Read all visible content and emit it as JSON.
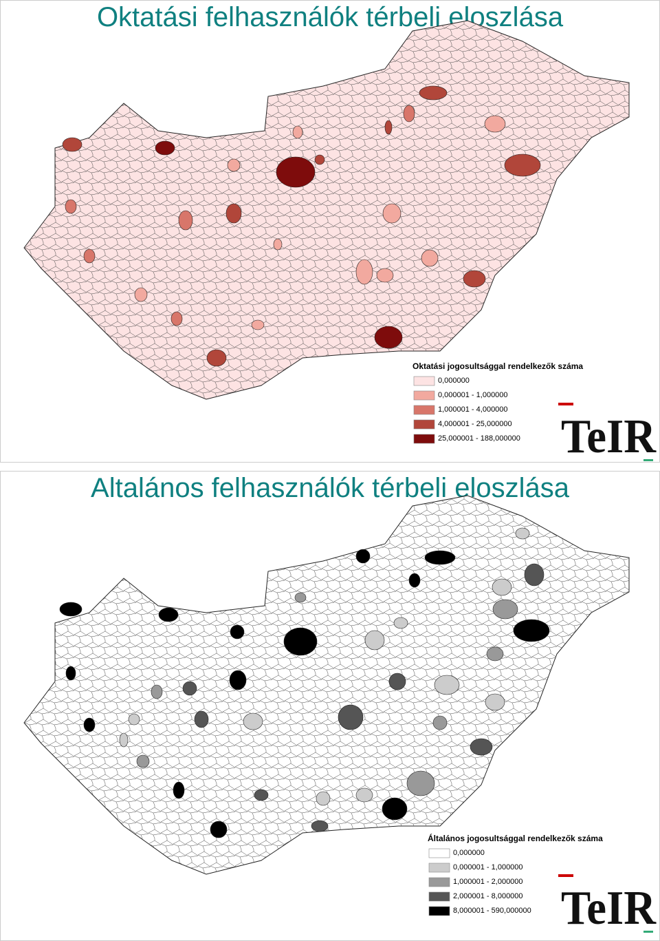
{
  "panels": [
    {
      "title": "Oktatási felhasználók térbeli eloszlása",
      "legend": {
        "title": "Oktatási jogosultsággal rendelkezők száma",
        "items": [
          "0,000000",
          "0,000001 - 1,000000",
          "1,000001 - 4,000000",
          "4,000001 - 25,000000",
          "25,000001 - 188,000000"
        ],
        "colors": [
          "#fde3e3",
          "#f2a99f",
          "#d8766a",
          "#b1463a",
          "#7e0c0c"
        ]
      },
      "logo": "TeIR"
    },
    {
      "title": "Altalános felhasználók térbeli eloszlása",
      "legend": {
        "title": "Általános jogosultsággal rendelkezők száma",
        "items": [
          "0,000000",
          "0,000001 - 1,000000",
          "1,000001 - 2,000000",
          "2,000001 - 8,000000",
          "8,000001 - 590,000000"
        ],
        "colors": [
          "#ffffff",
          "#cccccc",
          "#999999",
          "#555555",
          "#000000"
        ]
      },
      "logo": "TeIR"
    }
  ]
}
